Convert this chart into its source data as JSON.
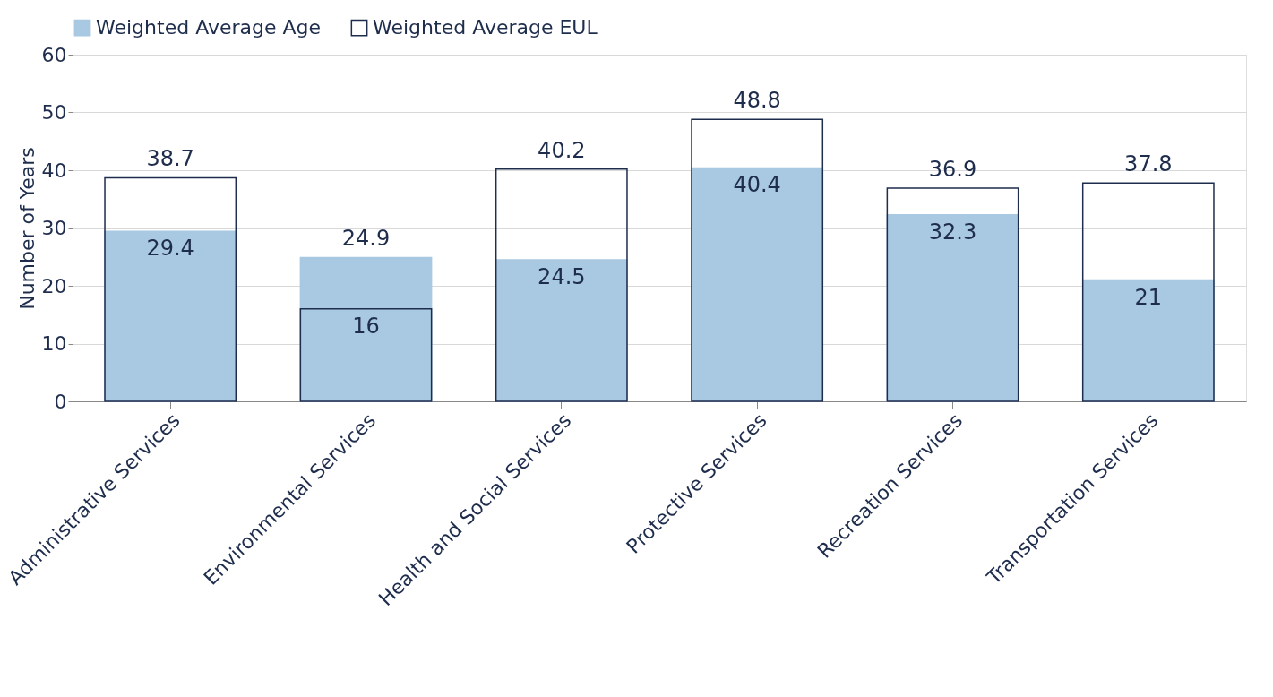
{
  "chart_data": {
    "type": "bar",
    "ylabel": "Number of Years",
    "categories": [
      "Administrative Services",
      "Environmental Services",
      "Health and Social Services",
      "Protective Services",
      "Recreation Services",
      "Transportation Services"
    ],
    "series": [
      {
        "name": "Weighted Average Age",
        "color": "#a9c8e1",
        "values": [
          29.4,
          24.9,
          24.5,
          40.4,
          32.3,
          21
        ]
      },
      {
        "name": "Weighted Average EUL",
        "color": "#1f2d4d",
        "values": [
          38.7,
          16,
          40.2,
          48.8,
          36.9,
          37.8
        ]
      }
    ],
    "ylim": [
      0,
      60
    ],
    "yticks": [
      0,
      10,
      20,
      30,
      40,
      50,
      60
    ],
    "grid": "y",
    "legend": "top",
    "data_labels": true
  }
}
